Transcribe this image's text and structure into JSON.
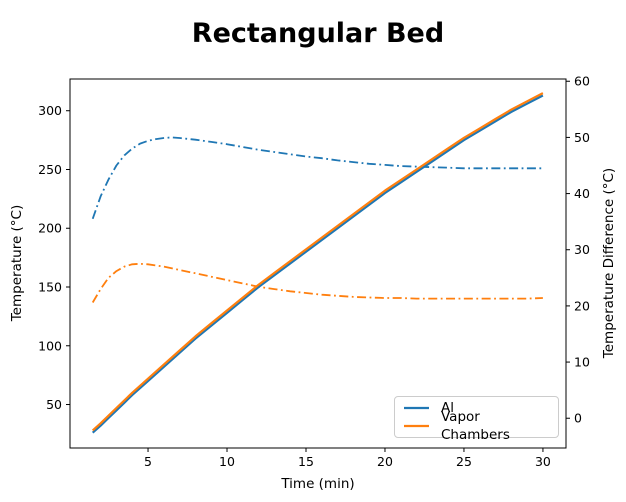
{
  "chart_data": {
    "type": "line",
    "title": "Rectangular Bed",
    "xlabel": "Time (min)",
    "ylabel_left": "Temperature (°C)",
    "ylabel_right": "Temperature Difference (°C)",
    "xlim": [
      0.06,
      31.46
    ],
    "ylim_left": [
      13,
      327
    ],
    "ylim_right": [
      -5.3,
      60.4
    ],
    "xticks": [
      5,
      10,
      15,
      20,
      25,
      30
    ],
    "yticks_left": [
      50,
      100,
      150,
      200,
      250,
      300
    ],
    "yticks_right": [
      0,
      10,
      20,
      30,
      40,
      50,
      60
    ],
    "grid": false,
    "background": "#ffffff",
    "axis_color": "#000000",
    "legend": {
      "position": "lower right",
      "entries": [
        {
          "label": "Al",
          "color": "#1f77b4"
        },
        {
          "label": "Vapor Chambers",
          "color": "#ff7f0e"
        }
      ]
    },
    "series": [
      {
        "name": "Al temperature difference",
        "axis": "right",
        "style": "dashdot",
        "color": "#1f77b4",
        "points": [
          [
            1.5,
            35.5
          ],
          [
            2,
            39.5
          ],
          [
            2.5,
            42.5
          ],
          [
            3,
            45
          ],
          [
            3.5,
            46.8
          ],
          [
            4,
            48
          ],
          [
            4.5,
            48.9
          ],
          [
            5,
            49.4
          ],
          [
            5.5,
            49.7
          ],
          [
            6,
            49.9
          ],
          [
            6.5,
            50
          ],
          [
            7,
            49.9
          ],
          [
            8,
            49.6
          ],
          [
            9,
            49.2
          ],
          [
            10,
            48.8
          ],
          [
            11,
            48.3
          ],
          [
            12,
            47.8
          ],
          [
            13,
            47.4
          ],
          [
            14,
            47
          ],
          [
            15,
            46.6
          ],
          [
            16,
            46.3
          ],
          [
            17,
            45.9
          ],
          [
            18,
            45.6
          ],
          [
            19,
            45.3
          ],
          [
            20,
            45.1
          ],
          [
            21,
            44.9
          ],
          [
            22,
            44.8
          ],
          [
            23,
            44.7
          ],
          [
            24,
            44.6
          ],
          [
            25,
            44.5
          ],
          [
            26,
            44.5
          ],
          [
            27,
            44.5
          ],
          [
            28,
            44.5
          ],
          [
            29,
            44.5
          ],
          [
            30,
            44.5
          ]
        ]
      },
      {
        "name": "Vapor Chambers temperature difference",
        "axis": "right",
        "style": "dashdot",
        "color": "#ff7f0e",
        "points": [
          [
            1.5,
            20.6
          ],
          [
            2,
            23
          ],
          [
            2.5,
            25
          ],
          [
            3,
            26.2
          ],
          [
            3.5,
            27
          ],
          [
            4,
            27.4
          ],
          [
            4.5,
            27.5
          ],
          [
            5,
            27.4
          ],
          [
            6,
            27
          ],
          [
            7,
            26.4
          ],
          [
            8,
            25.8
          ],
          [
            9,
            25.2
          ],
          [
            10,
            24.6
          ],
          [
            11,
            24
          ],
          [
            12,
            23.4
          ],
          [
            13,
            23
          ],
          [
            14,
            22.6
          ],
          [
            15,
            22.3
          ],
          [
            16,
            22
          ],
          [
            17,
            21.8
          ],
          [
            18,
            21.6
          ],
          [
            19,
            21.5
          ],
          [
            20,
            21.4
          ],
          [
            21,
            21.4
          ],
          [
            22,
            21.3
          ],
          [
            23,
            21.3
          ],
          [
            24,
            21.3
          ],
          [
            25,
            21.3
          ],
          [
            26,
            21.3
          ],
          [
            27,
            21.3
          ],
          [
            28,
            21.3
          ],
          [
            29,
            21.3
          ],
          [
            30,
            21.4
          ]
        ]
      },
      {
        "name": "Al",
        "axis": "left",
        "style": "solid",
        "color": "#1f77b4",
        "points": [
          [
            1.5,
            26
          ],
          [
            2,
            32
          ],
          [
            2.5,
            38.5
          ],
          [
            3,
            45
          ],
          [
            4,
            58
          ],
          [
            5,
            70
          ],
          [
            6,
            82
          ],
          [
            7,
            94
          ],
          [
            8,
            106
          ],
          [
            9,
            117
          ],
          [
            10,
            128
          ],
          [
            11,
            139
          ],
          [
            12,
            150
          ],
          [
            13,
            160
          ],
          [
            14,
            170
          ],
          [
            15,
            180
          ],
          [
            16,
            190
          ],
          [
            17,
            200
          ],
          [
            18,
            210
          ],
          [
            19,
            220
          ],
          [
            20,
            230
          ],
          [
            21,
            239
          ],
          [
            22,
            248
          ],
          [
            23,
            257
          ],
          [
            24,
            266
          ],
          [
            25,
            275
          ],
          [
            26,
            283
          ],
          [
            27,
            291
          ],
          [
            28,
            299
          ],
          [
            29,
            306
          ],
          [
            30,
            313
          ]
        ]
      },
      {
        "name": "Vapor Chambers",
        "axis": "left",
        "style": "solid",
        "color": "#ff7f0e",
        "points": [
          [
            1.5,
            28
          ],
          [
            2,
            34
          ],
          [
            2.5,
            40.5
          ],
          [
            3,
            47
          ],
          [
            4,
            60
          ],
          [
            5,
            72
          ],
          [
            6,
            84
          ],
          [
            7,
            96
          ],
          [
            8,
            108
          ],
          [
            9,
            119
          ],
          [
            10,
            130
          ],
          [
            11,
            141
          ],
          [
            12,
            152
          ],
          [
            13,
            162
          ],
          [
            14,
            172
          ],
          [
            15,
            182
          ],
          [
            16,
            192
          ],
          [
            17,
            202
          ],
          [
            18,
            212
          ],
          [
            19,
            222
          ],
          [
            20,
            232
          ],
          [
            21,
            241
          ],
          [
            22,
            250
          ],
          [
            23,
            259
          ],
          [
            24,
            268
          ],
          [
            25,
            277
          ],
          [
            26,
            285
          ],
          [
            27,
            293
          ],
          [
            28,
            301
          ],
          [
            29,
            308
          ],
          [
            30,
            315
          ]
        ]
      }
    ]
  }
}
